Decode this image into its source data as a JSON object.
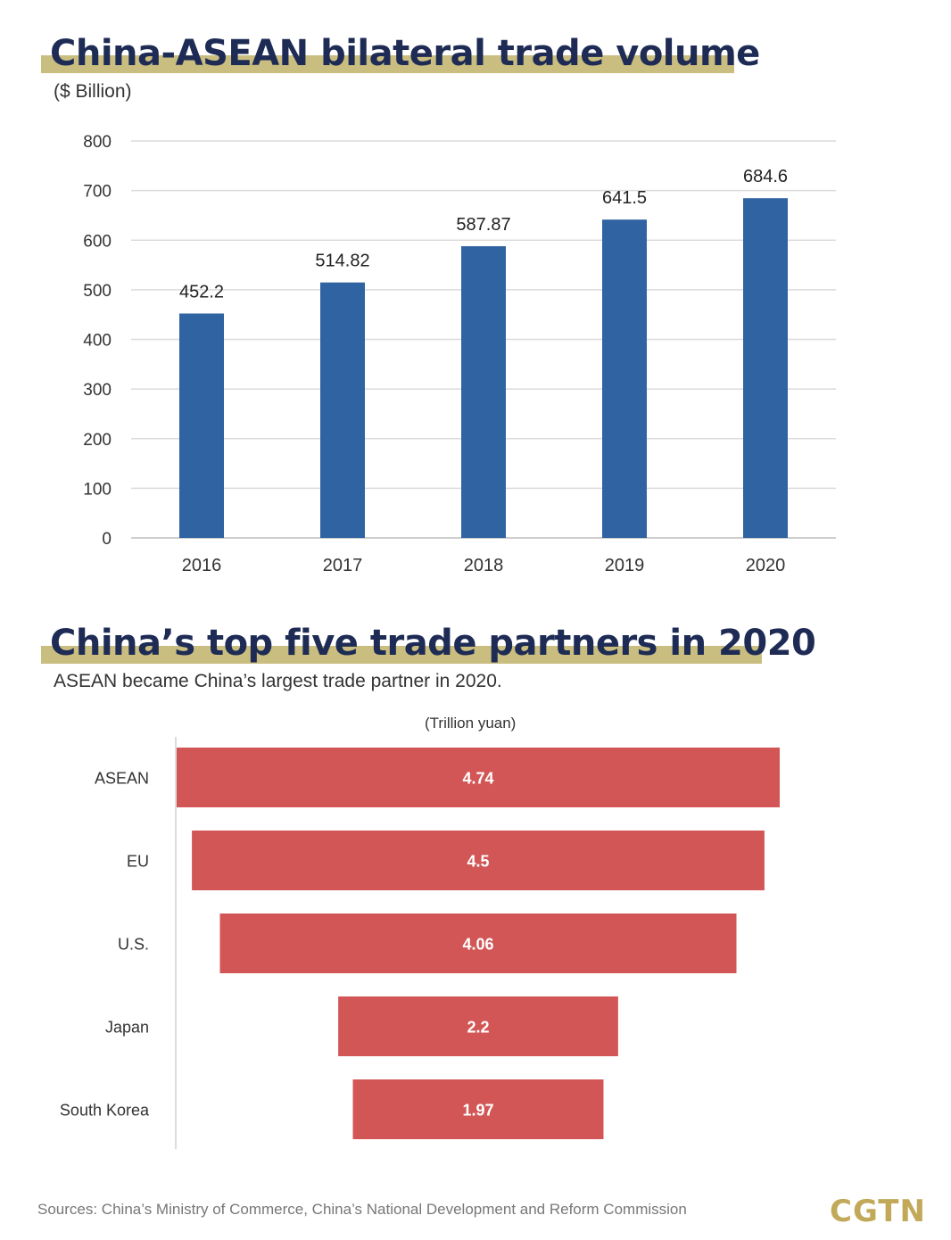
{
  "title1": "China-ASEAN bilateral trade volume",
  "unit1": "($ Billion)",
  "title2": "China’s top five trade partners in 2020",
  "subtitle2": "ASEAN became China’s largest trade partner in 2020.",
  "unit2": "(Trillion yuan)",
  "source": "Sources: China’s Ministry of Commerce, China’s National Development and Reform Commission",
  "logo": "CGTN",
  "colors": {
    "bar_blue": "#2f63a1",
    "bar_red": "#d25656",
    "title_band": "#c9bd7f",
    "title_text": "#1e2b55",
    "logo": "#c2a95a"
  },
  "chart_data": [
    {
      "type": "bar",
      "title": "China-ASEAN bilateral trade volume",
      "ylabel": "($ Billion)",
      "categories": [
        "2016",
        "2017",
        "2018",
        "2019",
        "2020"
      ],
      "values": [
        452.2,
        514.82,
        587.87,
        641.5,
        684.6
      ],
      "value_labels": [
        "452.2",
        "514.82",
        "587.87",
        "641.5",
        "684.6"
      ],
      "ylim": [
        0,
        800
      ],
      "yticks": [
        0,
        100,
        200,
        300,
        400,
        500,
        600,
        700,
        800
      ],
      "grid": true
    },
    {
      "type": "bar",
      "orientation": "horizontal-funnel",
      "title": "China’s top five trade partners in 2020",
      "xlabel": "(Trillion yuan)",
      "categories": [
        "ASEAN",
        "EU",
        "U.S.",
        "Japan",
        "South Korea"
      ],
      "values": [
        4.74,
        4.5,
        4.06,
        2.2,
        1.97
      ],
      "value_labels": [
        "4.74",
        "4.5",
        "4.06",
        "2.2",
        "1.97"
      ]
    }
  ]
}
